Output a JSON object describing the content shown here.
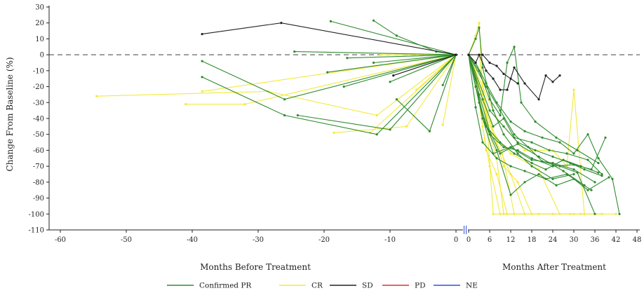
{
  "chart_data": {
    "type": "line",
    "ylabel": "Change From Baseline (%)",
    "y_ticks": [
      30,
      20,
      10,
      0,
      -10,
      -20,
      -30,
      -40,
      -50,
      -60,
      -70,
      -80,
      -90,
      -100,
      -110
    ],
    "ylim": [
      -110,
      30
    ],
    "before_axis": {
      "label": "Months Before Treatment",
      "xlim": [
        -60,
        0
      ],
      "ticks": [
        -60,
        -50,
        -40,
        -30,
        -20,
        -10,
        0
      ]
    },
    "after_axis": {
      "label": "Months After Treatment",
      "xlim": [
        0,
        48
      ],
      "ticks": [
        0,
        6,
        12,
        18,
        24,
        30,
        36,
        42,
        48
      ]
    },
    "reference_line": 0,
    "legend_position": "bottom",
    "colors": {
      "Confirmed PR": "#2e8b2e",
      "CR": "#f2ea3a",
      "SD": "#222222",
      "PD": "#e03030",
      "NE": "#3050e0"
    },
    "legend": [
      {
        "name": "Confirmed PR",
        "color": "#2e8b2e"
      },
      {
        "name": "CR",
        "color": "#f2ea3a"
      },
      {
        "name": "SD",
        "color": "#222222"
      },
      {
        "name": "PD",
        "color": "#e03030"
      },
      {
        "name": "NE",
        "color": "#3050e0"
      }
    ],
    "before_series": [
      {
        "category": "SD",
        "points": [
          [
            -38.5,
            13
          ],
          [
            -26.5,
            20
          ],
          [
            0,
            0
          ]
        ]
      },
      {
        "category": "SD",
        "points": [
          [
            -9.5,
            -13
          ],
          [
            0,
            0
          ]
        ]
      },
      {
        "category": "Confirmed PR",
        "points": [
          [
            -38.5,
            -4
          ],
          [
            -26,
            -28
          ],
          [
            0,
            0
          ]
        ]
      },
      {
        "category": "Confirmed PR",
        "points": [
          [
            -38.5,
            -14
          ],
          [
            -26,
            -38
          ],
          [
            -12,
            -50
          ],
          [
            0,
            0
          ]
        ]
      },
      {
        "category": "Confirmed PR",
        "points": [
          [
            -24.5,
            2
          ],
          [
            0,
            0
          ]
        ]
      },
      {
        "category": "Confirmed PR",
        "points": [
          [
            -24,
            -38
          ],
          [
            -10,
            -47
          ],
          [
            0,
            0
          ]
        ]
      },
      {
        "category": "Confirmed PR",
        "points": [
          [
            -19,
            21
          ],
          [
            0,
            0
          ]
        ]
      },
      {
        "category": "Confirmed PR",
        "points": [
          [
            -19.5,
            -11
          ],
          [
            0,
            0
          ]
        ]
      },
      {
        "category": "Confirmed PR",
        "points": [
          [
            -17,
            -20
          ],
          [
            0,
            0
          ]
        ]
      },
      {
        "category": "Confirmed PR",
        "points": [
          [
            -16.5,
            -2
          ],
          [
            0,
            0
          ]
        ]
      },
      {
        "category": "Confirmed PR",
        "points": [
          [
            -12.5,
            21.5
          ],
          [
            -9,
            12
          ],
          [
            -3,
            2
          ],
          [
            0,
            0
          ]
        ]
      },
      {
        "category": "Confirmed PR",
        "points": [
          [
            -12.5,
            -5
          ],
          [
            0,
            0
          ]
        ]
      },
      {
        "category": "Confirmed PR",
        "points": [
          [
            -10,
            -17
          ],
          [
            0,
            0
          ]
        ]
      },
      {
        "category": "Confirmed PR",
        "points": [
          [
            -9,
            -28
          ],
          [
            -4,
            -48
          ],
          [
            0,
            0
          ]
        ]
      },
      {
        "category": "Confirmed PR",
        "points": [
          [
            -2,
            -19
          ],
          [
            0,
            0
          ]
        ]
      },
      {
        "category": "CR",
        "points": [
          [
            -54.5,
            -26
          ],
          [
            -28.5,
            -23
          ],
          [
            -12,
            -38
          ],
          [
            0,
            0
          ]
        ]
      },
      {
        "category": "CR",
        "points": [
          [
            -41,
            -31
          ],
          [
            -32,
            -31
          ],
          [
            0,
            0
          ]
        ]
      },
      {
        "category": "CR",
        "points": [
          [
            -38.5,
            -23
          ],
          [
            0,
            0
          ]
        ]
      },
      {
        "category": "CR",
        "points": [
          [
            -18.5,
            -49
          ],
          [
            -7.5,
            -45
          ],
          [
            0,
            0
          ]
        ]
      },
      {
        "category": "CR",
        "points": [
          [
            -13,
            -49
          ],
          [
            0,
            0
          ]
        ]
      },
      {
        "category": "CR",
        "points": [
          [
            -11.5,
            0
          ],
          [
            0,
            0
          ]
        ]
      },
      {
        "category": "CR",
        "points": [
          [
            -6,
            -22
          ],
          [
            0,
            0
          ]
        ]
      },
      {
        "category": "CR",
        "points": [
          [
            -2,
            -44
          ],
          [
            0,
            0
          ]
        ]
      }
    ],
    "after_series": [
      {
        "category": "CR",
        "points": [
          [
            0,
            0
          ],
          [
            2,
            12
          ],
          [
            3,
            20
          ],
          [
            4,
            -20
          ],
          [
            6,
            -50
          ],
          [
            8,
            -65
          ],
          [
            10,
            -100
          ],
          [
            42,
            -100
          ]
        ]
      },
      {
        "category": "CR",
        "points": [
          [
            0,
            0
          ],
          [
            3,
            0
          ],
          [
            5,
            -35
          ],
          [
            7,
            -100
          ],
          [
            32,
            -100
          ]
        ]
      },
      {
        "category": "CR",
        "points": [
          [
            0,
            0
          ],
          [
            2,
            -10
          ],
          [
            4,
            -45
          ],
          [
            6,
            -70
          ],
          [
            9,
            -100
          ],
          [
            36,
            -100
          ]
        ]
      },
      {
        "category": "CR",
        "points": [
          [
            0,
            0
          ],
          [
            3,
            -30
          ],
          [
            5,
            -60
          ],
          [
            8,
            -75
          ],
          [
            11,
            -100
          ],
          [
            38,
            -100
          ]
        ]
      },
      {
        "category": "CR",
        "points": [
          [
            0,
            0
          ],
          [
            4,
            -25
          ],
          [
            8,
            -55
          ],
          [
            12,
            -75
          ],
          [
            16,
            -100
          ],
          [
            24,
            -100
          ]
        ]
      },
      {
        "category": "CR",
        "points": [
          [
            0,
            0
          ],
          [
            2,
            -15
          ],
          [
            4,
            -38
          ],
          [
            9,
            -55
          ],
          [
            13,
            -100
          ],
          [
            20,
            -100
          ]
        ]
      },
      {
        "category": "CR",
        "points": [
          [
            0,
            0
          ],
          [
            6,
            -42
          ],
          [
            10,
            -70
          ],
          [
            14,
            -80
          ],
          [
            18,
            -100
          ],
          [
            30,
            -100
          ]
        ]
      },
      {
        "category": "CR",
        "points": [
          [
            0,
            0
          ],
          [
            8,
            -40
          ],
          [
            16,
            -60
          ],
          [
            24,
            -60
          ],
          [
            28,
            -70
          ],
          [
            30,
            -22
          ],
          [
            33,
            -100
          ],
          [
            36,
            -100
          ]
        ]
      },
      {
        "category": "CR",
        "points": [
          [
            0,
            0
          ],
          [
            3,
            -20
          ],
          [
            6,
            -48
          ],
          [
            12,
            -62
          ],
          [
            20,
            -72
          ],
          [
            26,
            -100
          ],
          [
            29,
            -100
          ]
        ]
      },
      {
        "category": "Confirmed PR",
        "points": [
          [
            0,
            0
          ],
          [
            2,
            10
          ],
          [
            3,
            17
          ],
          [
            4,
            -8
          ],
          [
            7,
            -35
          ],
          [
            10,
            -50
          ],
          [
            14,
            -62
          ],
          [
            18,
            -70
          ],
          [
            24,
            -78
          ],
          [
            30,
            -75
          ]
        ]
      },
      {
        "category": "Confirmed PR",
        "points": [
          [
            0,
            0
          ],
          [
            2,
            -15
          ],
          [
            4,
            -40
          ],
          [
            7,
            -62
          ],
          [
            12,
            -58
          ],
          [
            18,
            -66
          ],
          [
            24,
            -68
          ],
          [
            30,
            -72
          ],
          [
            36,
            -80
          ]
        ]
      },
      {
        "category": "Confirmed PR",
        "points": [
          [
            0,
            0
          ],
          [
            3,
            -25
          ],
          [
            6,
            -48
          ],
          [
            9,
            -62
          ],
          [
            14,
            -56
          ],
          [
            20,
            -64
          ],
          [
            27,
            -73
          ],
          [
            33,
            -82
          ]
        ]
      },
      {
        "category": "Confirmed PR",
        "points": [
          [
            0,
            0
          ],
          [
            2,
            -33
          ],
          [
            4,
            -55
          ],
          [
            8,
            -65
          ],
          [
            12,
            -70
          ],
          [
            16,
            -73
          ],
          [
            22,
            -78
          ],
          [
            28,
            -75
          ],
          [
            35,
            -85
          ]
        ]
      },
      {
        "category": "Confirmed PR",
        "points": [
          [
            0,
            0
          ],
          [
            4,
            -28
          ],
          [
            7,
            -45
          ],
          [
            10,
            -40
          ],
          [
            13,
            -52
          ],
          [
            18,
            -55
          ],
          [
            23,
            -60
          ],
          [
            28,
            -62
          ],
          [
            34,
            -66
          ],
          [
            38,
            -75
          ]
        ]
      },
      {
        "category": "Confirmed PR",
        "points": [
          [
            0,
            0
          ],
          [
            3,
            -10
          ],
          [
            6,
            -28
          ],
          [
            9,
            -38
          ],
          [
            11,
            -5
          ],
          [
            13,
            5
          ],
          [
            15,
            -30
          ],
          [
            19,
            -42
          ],
          [
            25,
            -52
          ],
          [
            31,
            -60
          ],
          [
            37,
            -68
          ]
        ]
      },
      {
        "category": "Confirmed PR",
        "points": [
          [
            0,
            0
          ],
          [
            5,
            -20
          ],
          [
            9,
            -35
          ],
          [
            13,
            -50
          ],
          [
            17,
            -58
          ],
          [
            21,
            -67
          ],
          [
            26,
            -70
          ],
          [
            31,
            -74
          ],
          [
            36,
            -100
          ]
        ]
      },
      {
        "category": "Confirmed PR",
        "points": [
          [
            0,
            0
          ],
          [
            2,
            -5
          ],
          [
            5,
            -18
          ],
          [
            8,
            -30
          ],
          [
            12,
            -42
          ],
          [
            16,
            -48
          ],
          [
            21,
            -52
          ],
          [
            26,
            -55
          ],
          [
            30,
            -62
          ],
          [
            34,
            -50
          ],
          [
            37,
            -65
          ],
          [
            41,
            -78
          ],
          [
            43,
            -100
          ]
        ]
      },
      {
        "category": "Confirmed PR",
        "points": [
          [
            0,
            0
          ],
          [
            3,
            -30
          ],
          [
            6,
            -50
          ],
          [
            10,
            -58
          ],
          [
            14,
            -60
          ],
          [
            18,
            -65
          ],
          [
            24,
            -70
          ],
          [
            30,
            -69
          ],
          [
            35,
            -72
          ],
          [
            39,
            -52
          ]
        ]
      },
      {
        "category": "Confirmed PR",
        "points": [
          [
            0,
            0
          ],
          [
            4,
            -40
          ],
          [
            8,
            -60
          ],
          [
            12,
            -88
          ],
          [
            16,
            -80
          ],
          [
            20,
            -75
          ],
          [
            25,
            -82
          ],
          [
            30,
            -78
          ],
          [
            34,
            -85
          ],
          [
            40,
            -77
          ]
        ]
      },
      {
        "category": "Confirmed PR",
        "points": [
          [
            0,
            0
          ],
          [
            2,
            -20
          ],
          [
            5,
            -45
          ],
          [
            9,
            -55
          ],
          [
            13,
            -62
          ],
          [
            18,
            -68
          ],
          [
            22,
            -72
          ],
          [
            27,
            -66
          ],
          [
            32,
            -70
          ],
          [
            37,
            -74
          ]
        ]
      },
      {
        "category": "Confirmed PR",
        "points": [
          [
            0,
            0
          ],
          [
            6,
            -35
          ],
          [
            10,
            -45
          ],
          [
            14,
            -55
          ],
          [
            19,
            -60
          ],
          [
            24,
            -64
          ],
          [
            29,
            -68
          ],
          [
            33,
            -72
          ],
          [
            38,
            -76
          ]
        ]
      },
      {
        "category": "SD",
        "points": [
          [
            0,
            0
          ],
          [
            2,
            -5
          ],
          [
            3,
            0
          ],
          [
            5,
            -10
          ],
          [
            7,
            -15
          ],
          [
            9,
            -22
          ],
          [
            11,
            -22
          ],
          [
            13,
            -8
          ],
          [
            16,
            -18
          ],
          [
            20,
            -28
          ],
          [
            22,
            -13
          ],
          [
            24,
            -17
          ],
          [
            26,
            -13
          ]
        ]
      },
      {
        "category": "SD",
        "points": [
          [
            0,
            0
          ],
          [
            4,
            0
          ],
          [
            6,
            -5
          ],
          [
            8,
            -7
          ],
          [
            10,
            -12
          ],
          [
            12,
            -15
          ],
          [
            14,
            -18
          ]
        ]
      }
    ]
  }
}
